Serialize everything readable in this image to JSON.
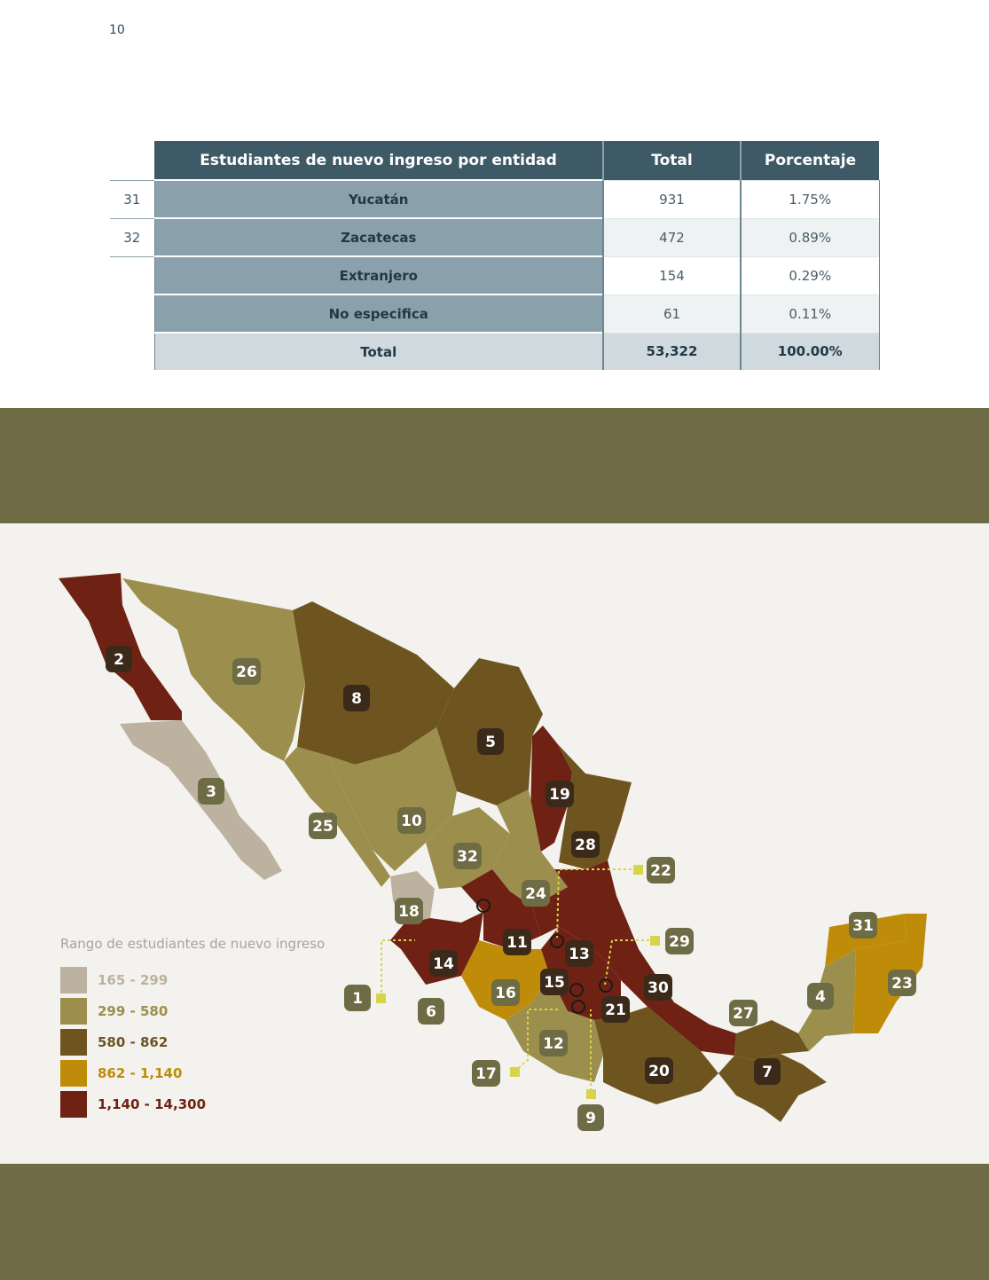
{
  "page_number": "10",
  "table": {
    "headers": [
      "Estudiantes de nuevo ingreso por entidad",
      "Total",
      "Porcentaje"
    ],
    "rows": [
      {
        "num": "31",
        "entity": "Yucatán",
        "total": "931",
        "pct": "1.75%"
      },
      {
        "num": "32",
        "entity": "Zacatecas",
        "total": "472",
        "pct": "0.89%"
      },
      {
        "num": "",
        "entity": "Extranjero",
        "total": "154",
        "pct": "0.29%"
      },
      {
        "num": "",
        "entity": "No especifica",
        "total": "61",
        "pct": "0.11%"
      }
    ],
    "total_row": {
      "entity": "Total",
      "total": "53,322",
      "pct": "100.00%"
    }
  },
  "legend": {
    "title": "Rango de estudiantes de nuevo ingreso",
    "items": [
      {
        "label": "165 - 299",
        "color": "#bdb2a0"
      },
      {
        "label": "299 - 580",
        "color": "#9c8f4d"
      },
      {
        "label": "580 - 862",
        "color": "#6e5520"
      },
      {
        "label": "862 - 1,140",
        "color": "#bf8c0a"
      },
      {
        "label": "1,140 - 14,300",
        "color": "#6f2213"
      }
    ]
  },
  "map": {
    "state_labels": [
      "1",
      "2",
      "3",
      "4",
      "5",
      "6",
      "7",
      "8",
      "9",
      "10",
      "11",
      "12",
      "13",
      "14",
      "15",
      "16",
      "17",
      "18",
      "19",
      "20",
      "21",
      "22",
      "23",
      "24",
      "25",
      "26",
      "27",
      "28",
      "29",
      "30",
      "31",
      "32"
    ]
  },
  "colors": {
    "band": "#6f6c45",
    "panel": "#f3f2ee",
    "table_header": "#3e5a66",
    "entity_cell": "#8aa1ab",
    "total_row": "#cfd9de"
  }
}
